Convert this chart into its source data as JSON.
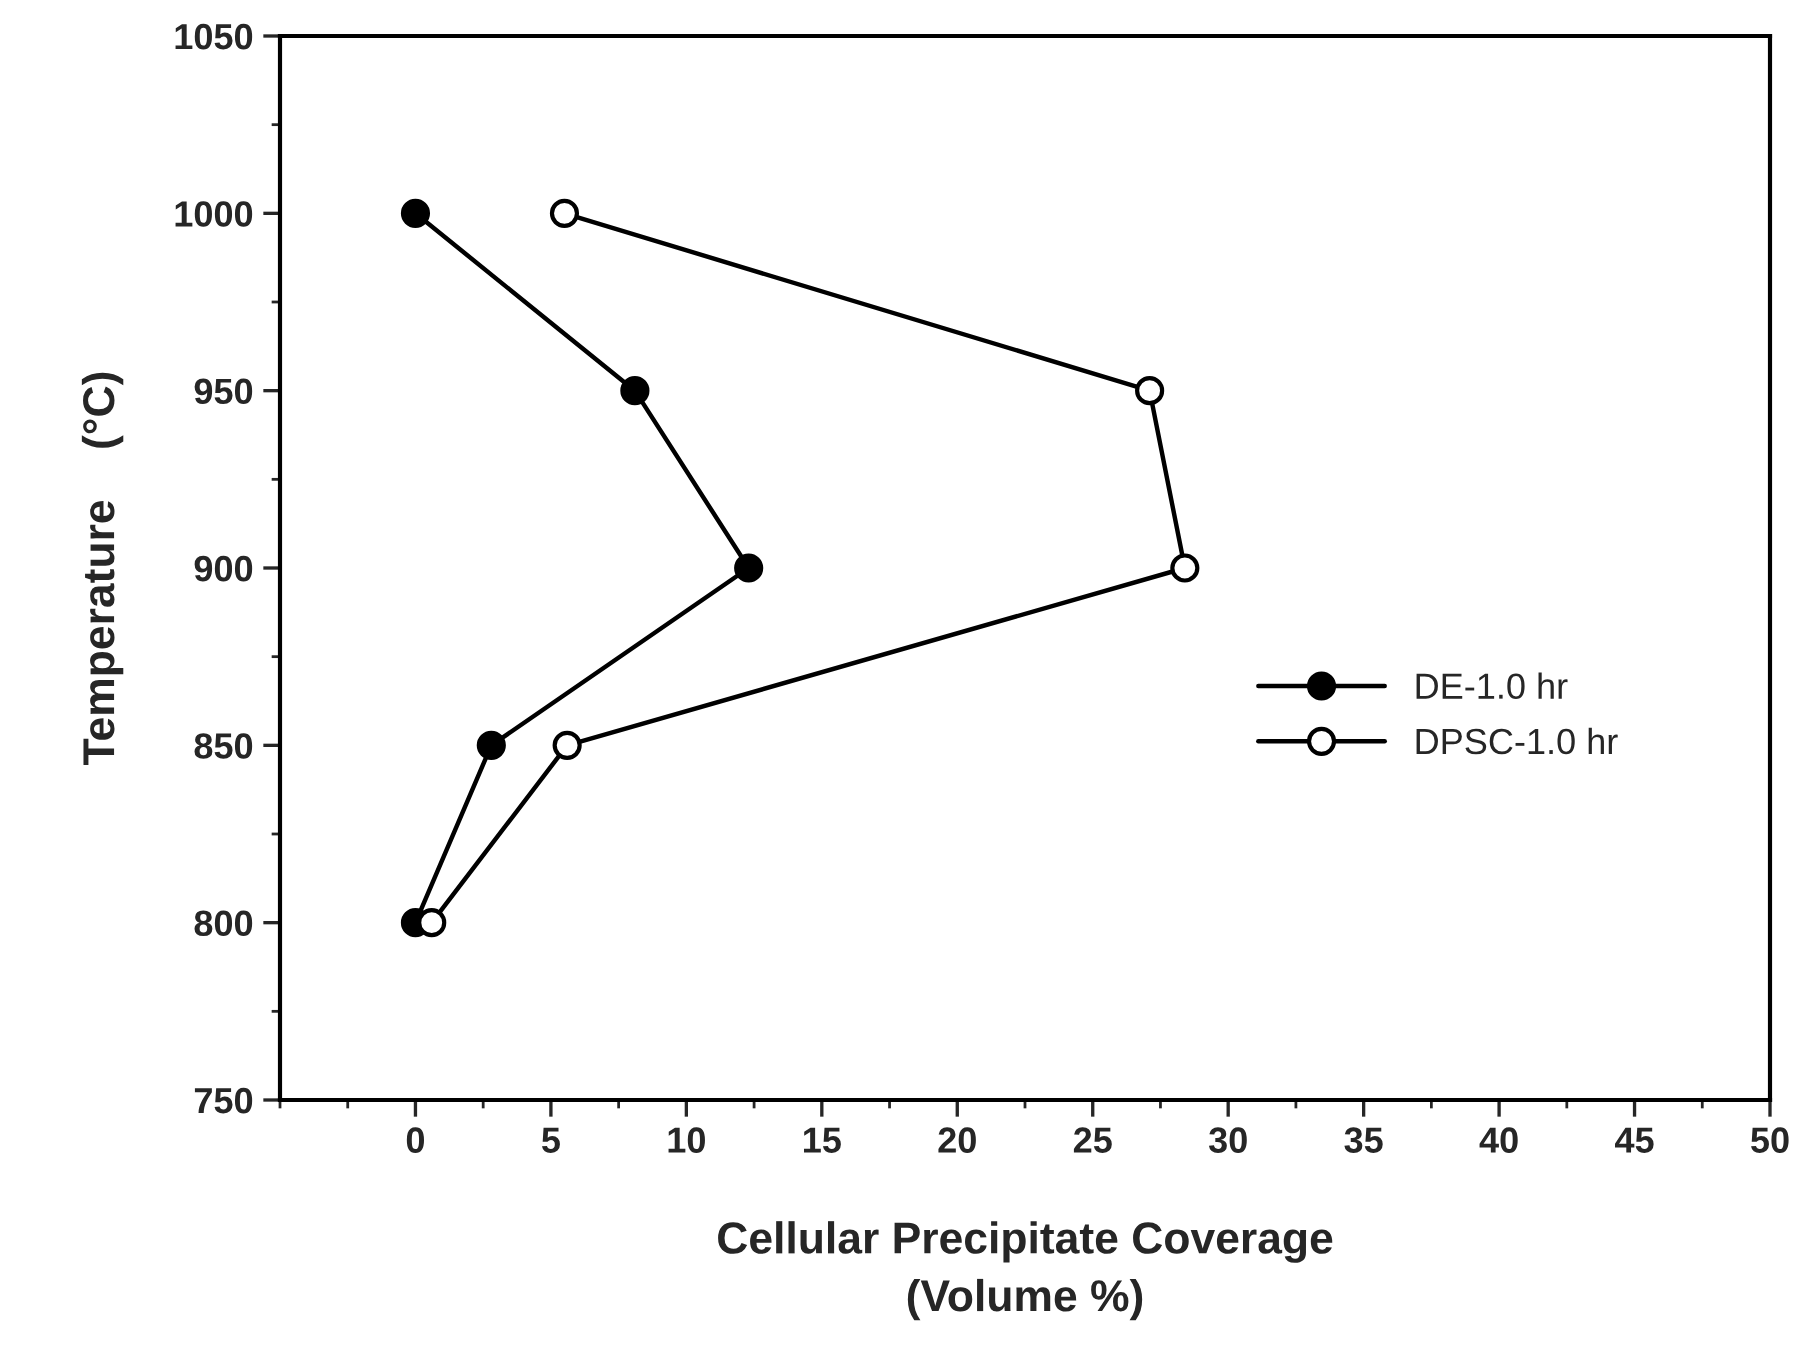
{
  "chart_data": {
    "type": "line",
    "xlabel": "Cellular Precipitate Coverage\n(Volume %)",
    "ylabel": "Temperature    (°C)",
    "xlim": [
      -5,
      50
    ],
    "xticks": [
      0,
      5,
      10,
      15,
      20,
      25,
      30,
      35,
      40,
      45,
      50
    ],
    "ylim": [
      750,
      1050
    ],
    "yticks": [
      750,
      800,
      850,
      900,
      950,
      1000,
      1050
    ],
    "grid": false,
    "legend": "right",
    "line_style": "solid",
    "series": [
      {
        "name": "DE-1.0 hr",
        "color": "#000000",
        "marker": "circle",
        "x": [
          0,
          8.1,
          12.3,
          2.8,
          0
        ],
        "values": [
          1000,
          950,
          900,
          850,
          800
        ]
      },
      {
        "name": "DPSC-1.0 hr",
        "color": "#000000",
        "marker": "circle",
        "x": [
          5.5,
          27.1,
          28.4,
          5.6,
          0.6
        ],
        "values": [
          1000,
          950,
          900,
          850,
          800
        ]
      }
    ]
  }
}
